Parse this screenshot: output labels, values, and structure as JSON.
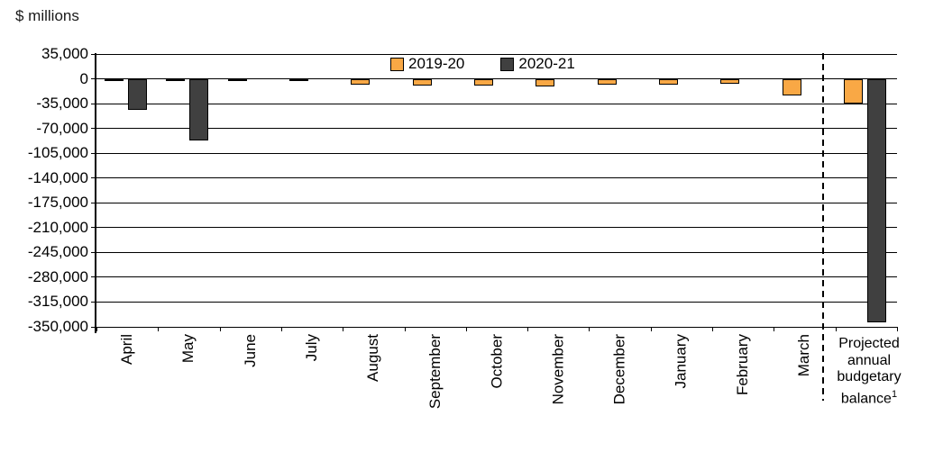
{
  "chart_data": {
    "type": "bar",
    "title": "",
    "units_label": "$ millions",
    "categories": [
      "April",
      "May",
      "June",
      "July",
      "August",
      "September",
      "October",
      "November",
      "December",
      "January",
      "February",
      "March",
      "Projected annual budgetary balance"
    ],
    "projected_label": "Projected annual budgetary balance",
    "footnote_marker": "1",
    "series": [
      {
        "name": "2019-20",
        "color": "#F9A845",
        "values": [
          -2500,
          -2500,
          -1000,
          -3000,
          -8500,
          -9000,
          -10000,
          -10500,
          -8500,
          -8500,
          -7500,
          -23500,
          -34400
        ]
      },
      {
        "name": "2020-21",
        "color": "#404040",
        "values": [
          -43500,
          -87000,
          null,
          null,
          null,
          null,
          null,
          null,
          null,
          null,
          null,
          null,
          -343200
        ]
      }
    ],
    "ylim": [
      35000,
      -350000
    ],
    "ytick_step": 35000,
    "ytick_labels": [
      "35,000",
      "0",
      "-35,000",
      "-70,000",
      "-105,000",
      "-140,000",
      "-175,000",
      "-210,000",
      "-245,000",
      "-280,000",
      "-315,000",
      "-350,000"
    ],
    "grid": "horizontal",
    "gridline_color": "#000000",
    "bar_border_color": "#000000",
    "legend_position": "top-center-inside",
    "separator_after_category": "March"
  }
}
